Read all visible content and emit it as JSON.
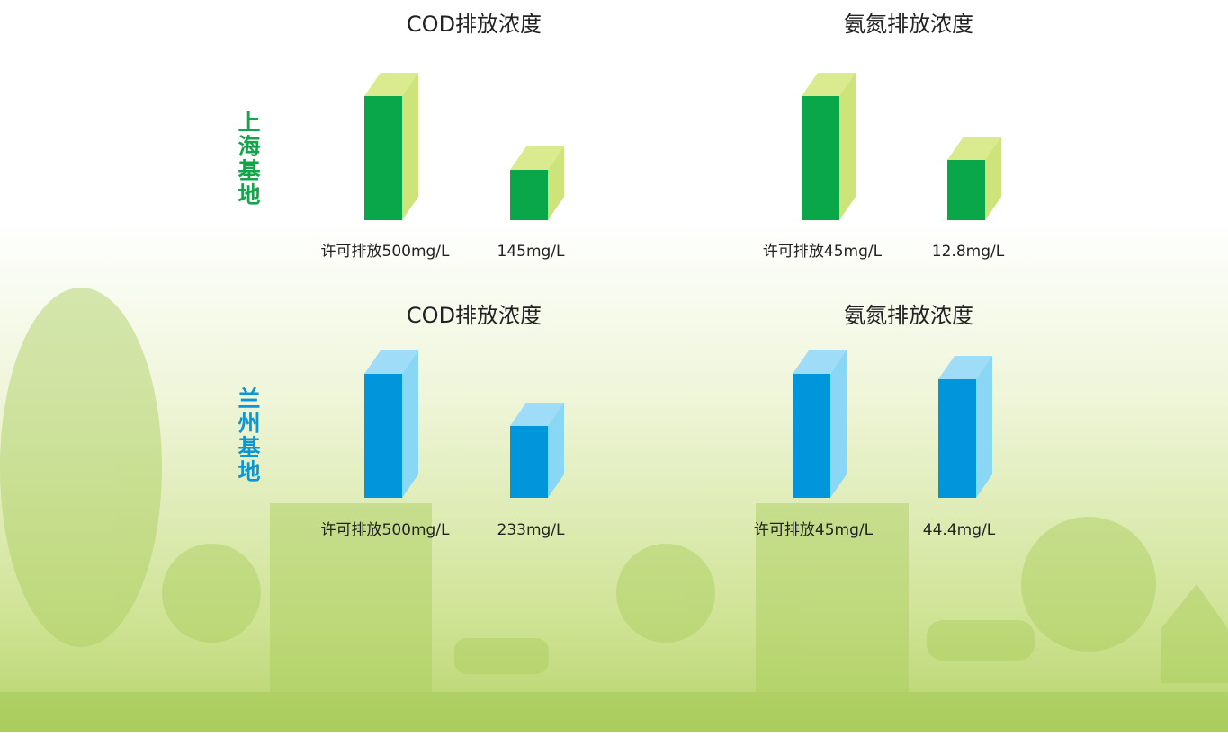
{
  "rows": [
    {
      "label": "上海基地",
      "panels": [
        {
          "title": "COD排放浓度",
          "bars": [
            "许可排放500mg/L",
            "145mg/L"
          ]
        },
        {
          "title": "氨氮排放浓度",
          "bars": [
            "许可排放45mg/L",
            "12.8mg/L"
          ]
        }
      ]
    },
    {
      "label": "兰州基地",
      "panels": [
        {
          "title": "COD排放浓度",
          "bars": [
            "许可排放500mg/L",
            "233mg/L"
          ]
        },
        {
          "title": "氨氮排放浓度",
          "bars": [
            "许可排放45mg/L",
            "44.4mg/L"
          ]
        }
      ]
    }
  ]
}
